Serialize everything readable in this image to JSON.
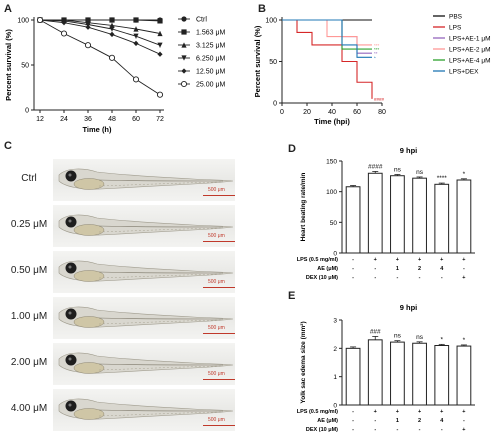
{
  "panels": {
    "a": "A",
    "b": "B",
    "c": "C",
    "d": "D",
    "e": "E"
  },
  "chart_data": [
    {
      "id": "A",
      "type": "line",
      "xlabel": "Time (h)",
      "ylabel": "Percent survival (%)",
      "xlim": [
        12,
        72
      ],
      "ylim": [
        0,
        100
      ],
      "xticks": [
        12,
        24,
        36,
        48,
        60,
        72
      ],
      "yticks": [
        0,
        50,
        100
      ],
      "ytick_labels": [
        "0",
        "50",
        "100"
      ],
      "x": [
        12,
        24,
        36,
        48,
        60,
        72
      ],
      "series": [
        {
          "name": "Ctrl",
          "marker": "circle",
          "values": [
            100,
            100,
            100,
            100,
            100,
            100
          ]
        },
        {
          "name": "1.563 μM",
          "marker": "square",
          "values": [
            100,
            100,
            100,
            100,
            100,
            99
          ]
        },
        {
          "name": "3.125 μM",
          "marker": "triangle-up",
          "values": [
            100,
            100,
            97,
            94,
            90,
            85
          ]
        },
        {
          "name": "6.250 μM",
          "marker": "triangle-down",
          "values": [
            100,
            99,
            95,
            90,
            82,
            72
          ]
        },
        {
          "name": "12.50 μM",
          "marker": "diamond",
          "values": [
            100,
            97,
            92,
            84,
            74,
            62
          ]
        },
        {
          "name": "25.00 μM",
          "marker": "open-circle",
          "values": [
            100,
            85,
            72,
            58,
            34,
            17
          ]
        }
      ],
      "legend_position": "right"
    },
    {
      "id": "B",
      "type": "line",
      "step": true,
      "xlabel": "Time (hpi)",
      "ylabel": "Percent survival (%)",
      "xlim": [
        0,
        80
      ],
      "ylim": [
        0,
        100
      ],
      "xticks": [
        0,
        20,
        40,
        60,
        80
      ],
      "yticks": [
        0,
        50,
        100
      ],
      "series": [
        {
          "name": "PBS",
          "color": "#111111",
          "points": [
            [
              0,
              100
            ],
            [
              72,
              100
            ]
          ],
          "marker": ""
        },
        {
          "name": "LPS",
          "color": "#d62728",
          "points": [
            [
              0,
              100
            ],
            [
              12,
              100
            ],
            [
              12,
              85
            ],
            [
              24,
              85
            ],
            [
              24,
              70
            ],
            [
              48,
              70
            ],
            [
              48,
              50
            ],
            [
              60,
              50
            ],
            [
              60,
              25
            ],
            [
              72,
              25
            ],
            [
              72,
              5
            ]
          ],
          "marker": "####"
        },
        {
          "name": "LPS+AE-1 μM",
          "color": "#9467bd",
          "points": [
            [
              0,
              100
            ],
            [
              48,
              100
            ],
            [
              48,
              80
            ],
            [
              60,
              80
            ],
            [
              60,
              60
            ],
            [
              72,
              60
            ]
          ],
          "marker": "**"
        },
        {
          "name": "LPS+AE-2 μM",
          "color": "#ff9896",
          "points": [
            [
              0,
              100
            ],
            [
              36,
              100
            ],
            [
              36,
              80
            ],
            [
              60,
              80
            ],
            [
              60,
              70
            ],
            [
              72,
              70
            ]
          ],
          "marker": "***"
        },
        {
          "name": "LPS+AE-4 μM",
          "color": "#2ca02c",
          "points": [
            [
              0,
              100
            ],
            [
              48,
              100
            ],
            [
              48,
              65
            ],
            [
              72,
              65
            ]
          ],
          "marker": "***"
        },
        {
          "name": "LPS+DEX",
          "color": "#1f77b4",
          "points": [
            [
              0,
              100
            ],
            [
              48,
              100
            ],
            [
              48,
              70
            ],
            [
              60,
              70
            ],
            [
              60,
              55
            ],
            [
              72,
              55
            ]
          ],
          "marker": "*"
        }
      ],
      "legend_position": "right"
    },
    {
      "id": "D",
      "type": "bar",
      "title": "9 hpi",
      "ylabel": "Heart beating rate/min",
      "ylim": [
        0,
        150
      ],
      "yticks": [
        0,
        50,
        100,
        150
      ],
      "values": [
        108,
        130,
        126,
        122,
        112,
        119
      ],
      "errors": [
        2,
        3,
        2,
        2,
        2,
        2
      ],
      "annotations": [
        "",
        "####",
        "ns",
        "ns",
        "****",
        "*"
      ]
    },
    {
      "id": "E",
      "type": "bar",
      "title": "9 hpi",
      "ylabel": "Yolk sac edema size (mm²)",
      "ylim": [
        0,
        3
      ],
      "yticks": [
        0,
        1,
        2,
        3
      ],
      "values": [
        2.0,
        2.3,
        2.22,
        2.18,
        2.1,
        2.08
      ],
      "errors": [
        0.05,
        0.12,
        0.05,
        0.05,
        0.04,
        0.04
      ],
      "annotations": [
        "",
        "###",
        "ns",
        "ns",
        "*",
        "*"
      ]
    }
  ],
  "treatment_table": {
    "rows": [
      {
        "label": "LPS (0.5 mg/ml)",
        "cells": [
          "-",
          "+",
          "+",
          "+",
          "+",
          "+"
        ]
      },
      {
        "label": "AE (μM)",
        "cells": [
          "-",
          "-",
          "1",
          "2",
          "4",
          "-"
        ]
      },
      {
        "label": "DEX (10 μM)",
        "cells": [
          "-",
          "-",
          "-",
          "-",
          "-",
          "+"
        ]
      }
    ]
  },
  "zebrafish": {
    "scale_label": "500 μm",
    "rows": [
      {
        "label": "Ctrl"
      },
      {
        "label": "0.25 μM"
      },
      {
        "label": "0.50 μM"
      },
      {
        "label": "1.00 μM"
      },
      {
        "label": "2.00 μM"
      },
      {
        "label": "4.00 μM"
      }
    ]
  }
}
